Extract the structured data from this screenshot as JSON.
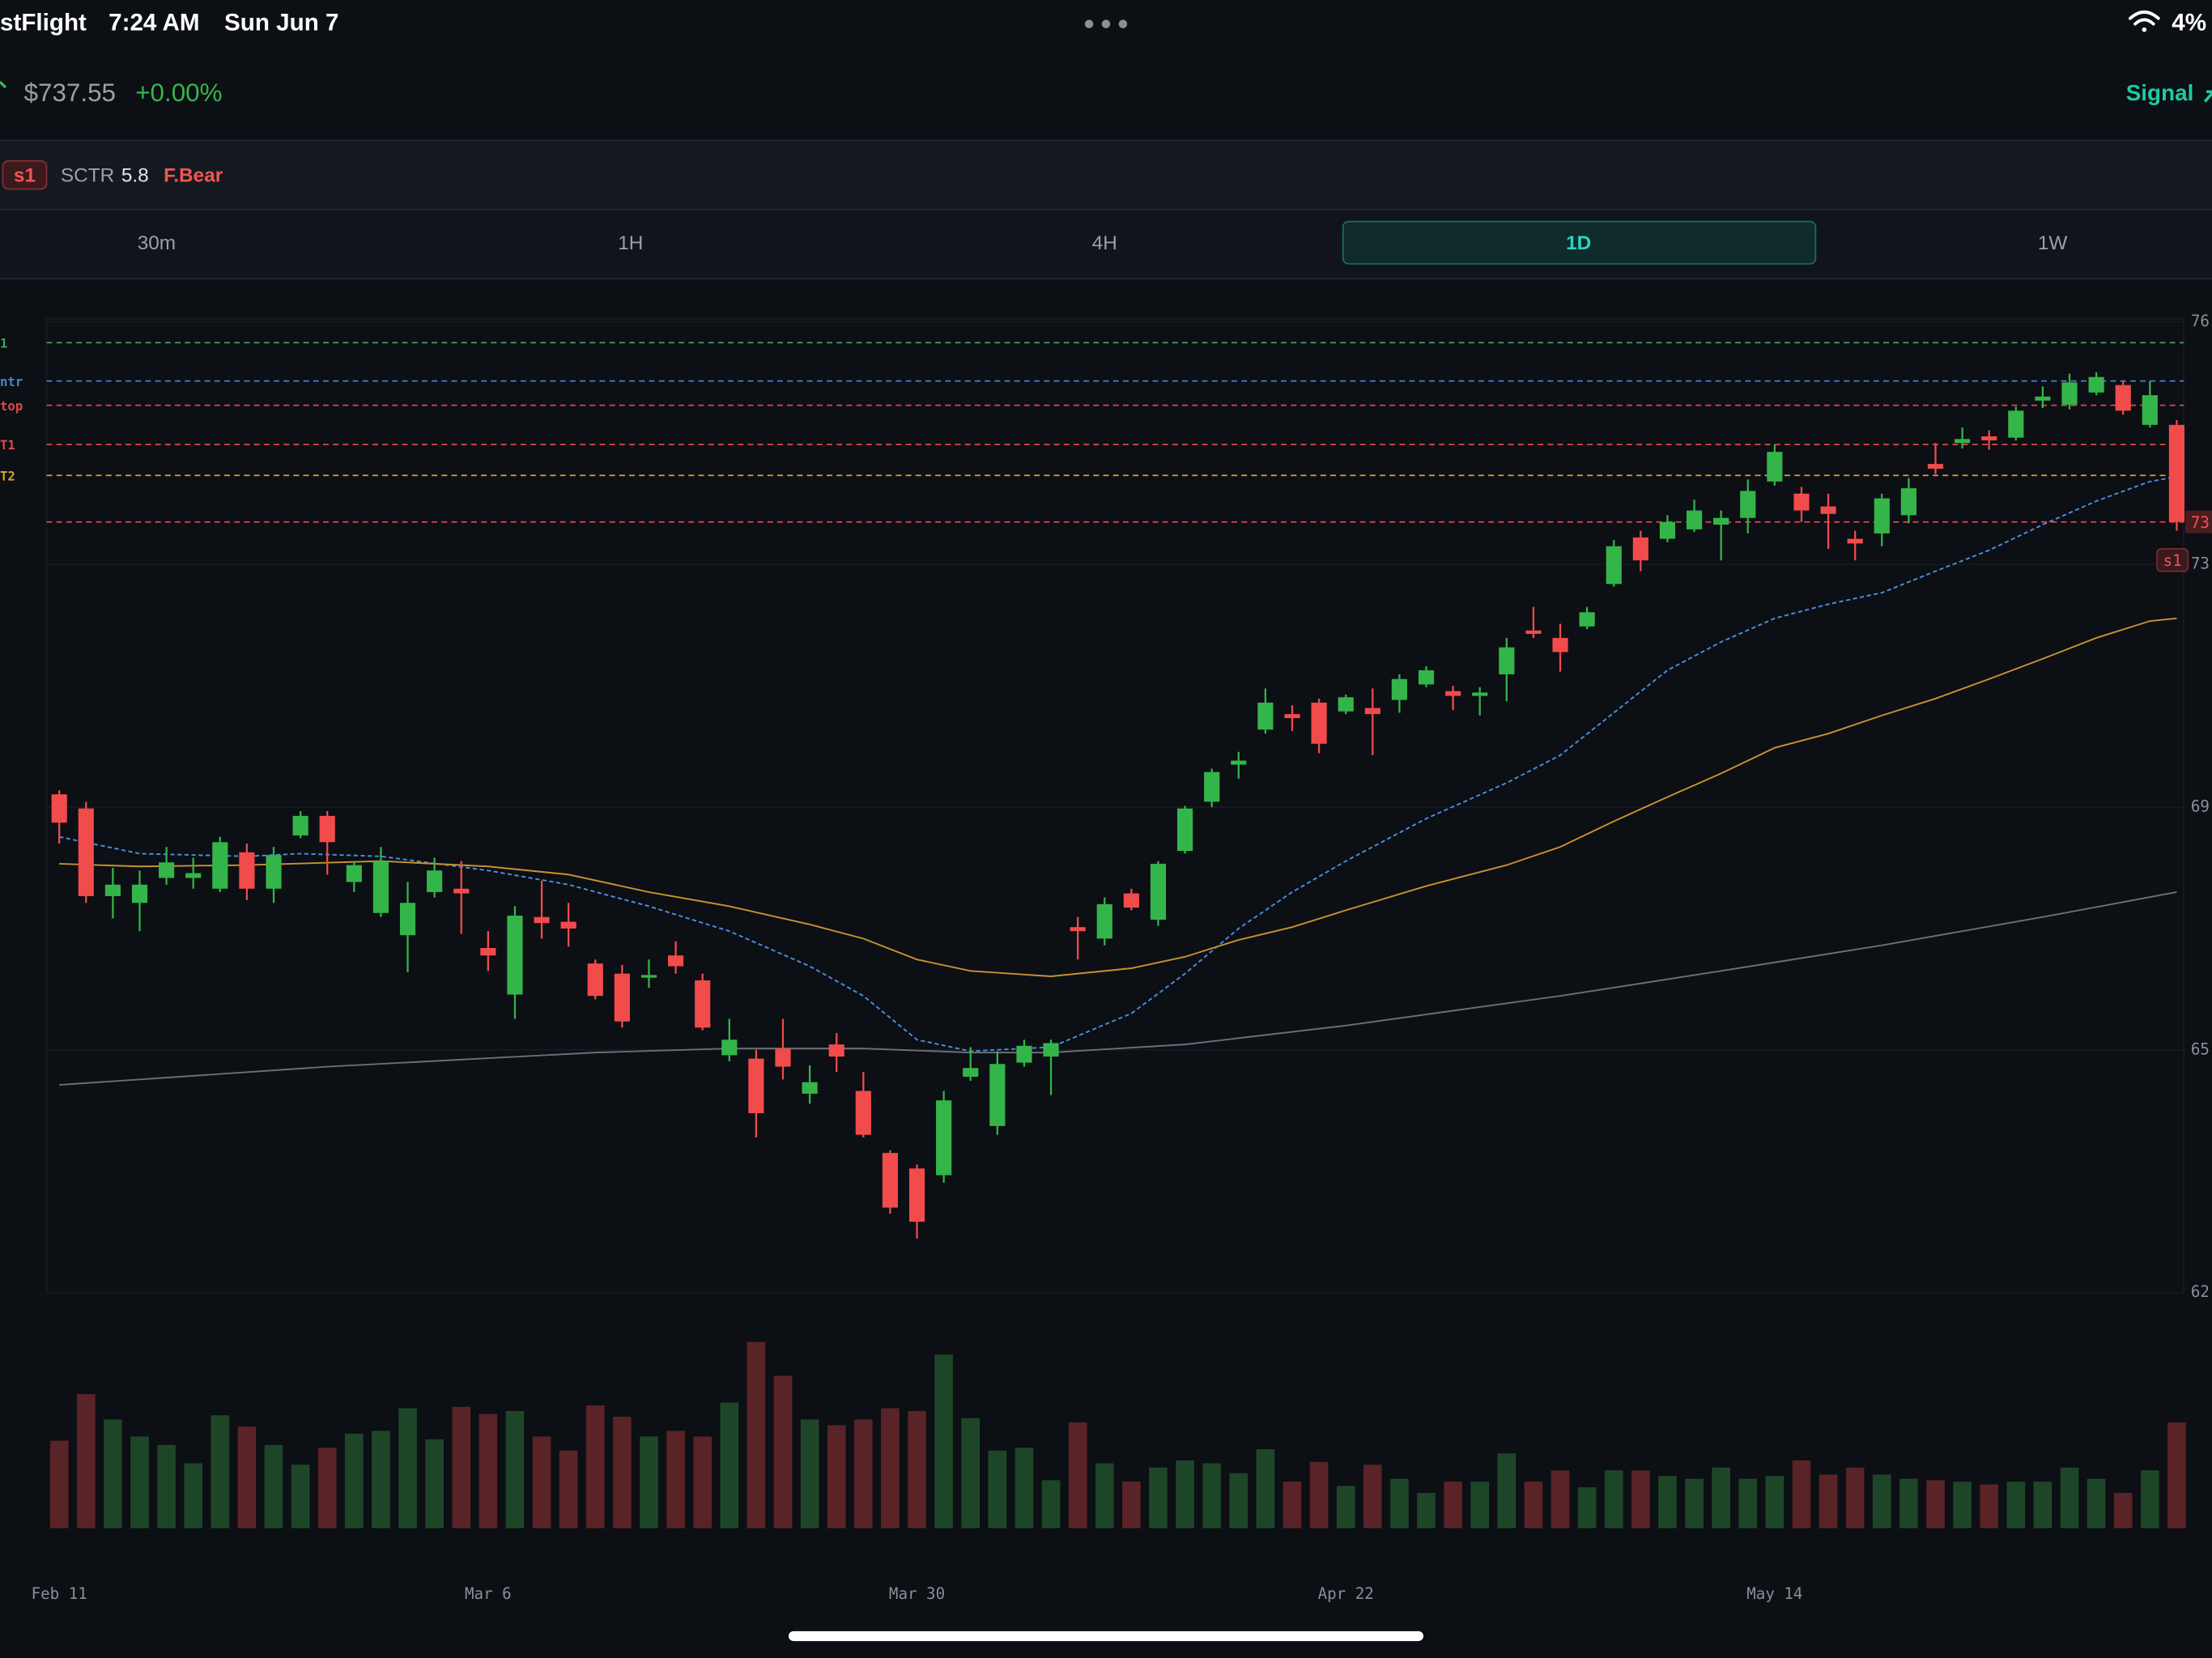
{
  "status_bar": {
    "app": "stFlight",
    "time": "7:24 AM",
    "date": "Sun Jun 7",
    "battery": "4%"
  },
  "header": {
    "price": "$737.55",
    "change": "+0.00%",
    "signal": "Signal"
  },
  "indicators": {
    "badge": "s1",
    "sctr_label": "SCTR",
    "sctr_value": "5.8",
    "trend": "F.Bear"
  },
  "timeframes": [
    "30m",
    "1H",
    "4H",
    "1D",
    "1W"
  ],
  "active_timeframe": "1D",
  "chart_data": {
    "type": "candlestick",
    "up_color": "#34b54a",
    "down_color": "#f24b4b",
    "up_volume_color": "#1d4628",
    "down_volume_color": "#5a2327",
    "categories": [
      "Feb 11",
      null,
      null,
      null,
      null,
      null,
      null,
      null,
      null,
      null,
      null,
      null,
      null,
      null,
      null,
      null,
      "Mar 6",
      null,
      null,
      null,
      null,
      null,
      null,
      null,
      null,
      null,
      null,
      null,
      null,
      null,
      null,
      null,
      "Mar 30",
      null,
      null,
      null,
      null,
      null,
      null,
      null,
      null,
      null,
      null,
      null,
      null,
      null,
      null,
      null,
      "Apr 22",
      null,
      null,
      null,
      null,
      null,
      null,
      null,
      null,
      null,
      null,
      null,
      null,
      null,
      null,
      null,
      "May 14",
      null,
      null,
      null,
      null,
      null,
      null,
      null,
      null,
      null,
      null,
      null,
      null,
      null,
      null,
      null
    ],
    "open": [
      695.9,
      693.8,
      680.8,
      679.8,
      683.5,
      683.5,
      681.9,
      687.3,
      681.9,
      689.8,
      692.7,
      682.9,
      678.3,
      675.0,
      681.4,
      681.9,
      673.1,
      666.2,
      677.7,
      677.0,
      670.8,
      669.3,
      668.7,
      672.0,
      668.3,
      657.2,
      656.7,
      658.2,
      651.5,
      658.8,
      651.9,
      642.7,
      640.4,
      639.4,
      654.0,
      646.7,
      656.1,
      657.0,
      676.2,
      674.5,
      681.2,
      677.3,
      687.5,
      694.8,
      700.3,
      705.5,
      707.8,
      709.5,
      708.2,
      708.7,
      709.9,
      712.2,
      711.2,
      710.5,
      713.7,
      720.2,
      719.1,
      720.8,
      727.1,
      734.0,
      733.8,
      735.2,
      735.9,
      736.9,
      742.3,
      740.5,
      738.6,
      733.8,
      734.6,
      737.3,
      744.9,
      748.0,
      749.0,
      748.8,
      754.3,
      753.7,
      755.5,
      756.6,
      750.7,
      750.7
    ],
    "high": [
      696.5,
      694.8,
      685.0,
      684.6,
      688.1,
      686.5,
      689.6,
      688.6,
      688.1,
      693.4,
      693.4,
      686.0,
      688.1,
      682.9,
      686.5,
      686.0,
      675.6,
      679.3,
      683.1,
      679.8,
      671.4,
      670.6,
      671.4,
      674.1,
      669.3,
      662.6,
      658.0,
      662.6,
      655.7,
      660.5,
      654.7,
      643.1,
      641.0,
      651.9,
      658.4,
      657.8,
      659.5,
      659.5,
      677.7,
      680.6,
      681.9,
      686.0,
      694.2,
      699.7,
      702.2,
      711.6,
      709.1,
      710.1,
      710.7,
      711.6,
      713.7,
      714.9,
      712.0,
      711.8,
      719.1,
      723.7,
      721.2,
      723.7,
      733.6,
      735.0,
      737.3,
      739.6,
      738.0,
      742.6,
      747.8,
      741.5,
      740.5,
      735.0,
      740.5,
      742.8,
      748.0,
      750.3,
      749.9,
      753.4,
      756.4,
      758.3,
      758.5,
      757.2,
      757.2,
      751.4
    ],
    "low": [
      688.6,
      679.8,
      677.5,
      675.6,
      682.5,
      681.9,
      681.4,
      680.2,
      679.8,
      689.4,
      684.0,
      681.4,
      677.7,
      669.5,
      680.6,
      675.2,
      669.7,
      662.6,
      674.5,
      673.3,
      665.5,
      661.3,
      667.2,
      669.3,
      660.9,
      656.3,
      645.0,
      653.6,
      650.0,
      654.7,
      645.0,
      633.7,
      630.0,
      638.3,
      653.4,
      645.4,
      655.5,
      651.3,
      671.4,
      673.5,
      678.7,
      676.4,
      687.1,
      694.0,
      698.2,
      704.9,
      705.3,
      702.0,
      707.8,
      701.7,
      708.0,
      711.8,
      708.4,
      707.6,
      709.7,
      719.1,
      714.1,
      720.4,
      726.7,
      729.0,
      733.3,
      734.8,
      730.6,
      734.6,
      741.7,
      736.3,
      732.3,
      730.6,
      732.7,
      736.1,
      743.4,
      747.2,
      747.0,
      748.4,
      753.2,
      753.0,
      755.1,
      752.2,
      750.3,
      735.0
    ],
    "close": [
      691.7,
      680.8,
      682.5,
      682.5,
      685.8,
      684.2,
      688.8,
      681.9,
      686.9,
      692.7,
      688.8,
      685.4,
      686.0,
      679.8,
      684.6,
      681.2,
      672.0,
      677.9,
      676.8,
      676.0,
      666.0,
      662.2,
      669.1,
      670.4,
      661.3,
      659.5,
      648.6,
      655.5,
      653.2,
      657.0,
      645.4,
      634.6,
      632.5,
      650.5,
      655.3,
      655.9,
      658.6,
      659.0,
      675.6,
      679.6,
      679.1,
      685.6,
      693.8,
      699.2,
      700.9,
      709.5,
      707.2,
      703.4,
      710.3,
      707.8,
      713.0,
      714.3,
      710.5,
      711.0,
      717.7,
      719.7,
      717.0,
      722.9,
      732.7,
      730.6,
      736.3,
      738.0,
      736.9,
      740.9,
      746.7,
      738.0,
      737.5,
      733.1,
      739.8,
      741.3,
      744.2,
      748.6,
      748.4,
      752.8,
      754.9,
      757.0,
      757.8,
      752.8,
      755.1,
      736.3
    ],
    "volume": [
      62,
      95,
      77,
      65,
      59,
      46,
      80,
      72,
      59,
      45,
      57,
      67,
      69,
      85,
      63,
      86,
      81,
      83,
      65,
      55,
      87,
      79,
      65,
      69,
      65,
      89,
      132,
      108,
      77,
      73,
      77,
      85,
      83,
      123,
      78,
      55,
      57,
      34,
      75,
      46,
      33,
      43,
      48,
      46,
      39,
      56,
      33,
      47,
      30,
      45,
      35,
      25,
      33,
      33,
      53,
      33,
      41,
      29,
      41,
      41,
      37,
      35,
      43,
      35,
      37,
      48,
      38,
      43,
      38,
      35,
      34,
      33,
      31,
      33,
      33,
      43,
      35,
      25,
      41,
      75
    ],
    "overlays": [
      {
        "color": "#4a8fe0",
        "dashed": true,
        "x": [
          0,
          3,
          7,
          9,
          12,
          16,
          19,
          22,
          25,
          28,
          30,
          32,
          34,
          37,
          40,
          42,
          44,
          46,
          48,
          51,
          54,
          56,
          58,
          60,
          62,
          64,
          66,
          68,
          70,
          72,
          74,
          76,
          78,
          79
        ],
        "values": [
          689.6,
          687.1,
          686.7,
          687.1,
          686.7,
          684.6,
          682.5,
          679.3,
          675.6,
          670.4,
          666.0,
          659.5,
          657.8,
          658.4,
          663.4,
          669.3,
          676.0,
          681.4,
          686.0,
          692.3,
          697.6,
          701.7,
          708.0,
          714.3,
          718.5,
          722.0,
          724.1,
          725.8,
          729.0,
          732.1,
          735.9,
          739.4,
          742.3,
          743.0
        ]
      },
      {
        "color": "#c8922e",
        "dashed": false,
        "x": [
          0,
          3,
          7,
          12,
          16,
          19,
          22,
          25,
          28,
          30,
          32,
          34,
          37,
          40,
          42,
          44,
          46,
          48,
          51,
          54,
          56,
          58,
          60,
          62,
          64,
          66,
          68,
          70,
          72,
          74,
          76,
          78,
          79
        ],
        "values": [
          685.6,
          685.2,
          685.4,
          686.0,
          685.2,
          684.0,
          681.4,
          679.3,
          676.6,
          674.5,
          671.4,
          669.7,
          668.9,
          670.1,
          671.8,
          674.3,
          676.2,
          678.7,
          682.3,
          685.4,
          688.1,
          691.9,
          695.5,
          699.0,
          702.8,
          704.9,
          707.6,
          710.1,
          713.0,
          716.0,
          719.1,
          721.6,
          722.0
        ]
      },
      {
        "color": "#6b6f76",
        "dashed": false,
        "x": [
          0,
          10,
          20,
          25,
          30,
          34,
          37,
          42,
          48,
          56,
          62,
          68,
          74,
          79
        ],
        "values": [
          652.8,
          655.5,
          657.6,
          658.2,
          658.2,
          657.6,
          657.6,
          658.8,
          661.6,
          666.0,
          669.7,
          673.5,
          677.7,
          681.4
        ]
      }
    ],
    "levels": [
      {
        "value": 762.9,
        "label": "1",
        "color": "#3fa35a"
      },
      {
        "value": 757.2,
        "label": "ntr",
        "color": "#4a7fd4"
      },
      {
        "value": 753.6,
        "label": "top",
        "color": "#e04848"
      },
      {
        "value": 747.8,
        "label": "T1",
        "color": "#e04848"
      },
      {
        "value": 743.2,
        "label": "T2",
        "color": "#d9a030"
      },
      {
        "value": 736.3,
        "color": "#e04848"
      }
    ],
    "price_tag": {
      "value": 736.3,
      "label": "73"
    },
    "signal_tag": "s1",
    "ylim": [
      622,
      766
    ],
    "yticks": [
      {
        "value": 766,
        "label": "76"
      },
      {
        "value": 730,
        "label": "73"
      },
      {
        "value": 694,
        "label": "69"
      },
      {
        "value": 658,
        "label": "65"
      },
      {
        "value": 622,
        "label": "62"
      }
    ],
    "grid": true
  }
}
